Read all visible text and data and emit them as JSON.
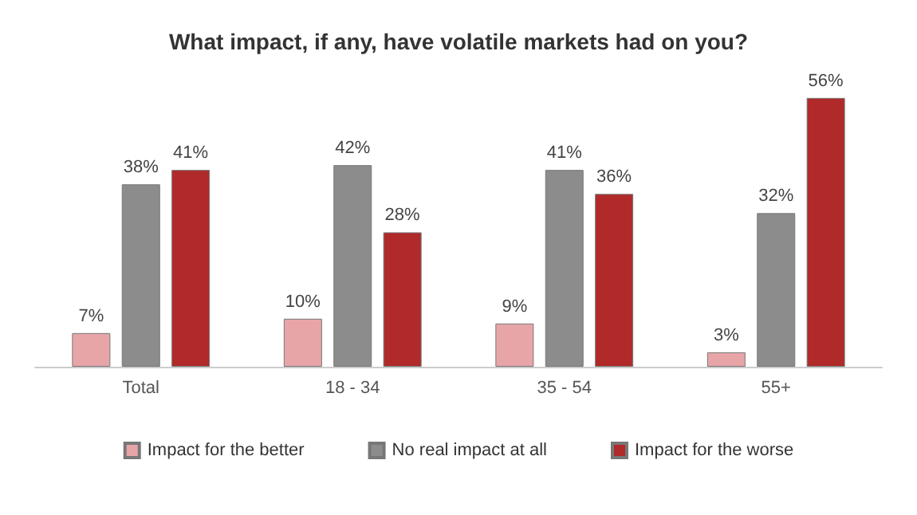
{
  "chart_data": {
    "type": "bar",
    "title": "What impact, if any, have volatile markets had on you?",
    "categories": [
      "Total",
      "18 - 34",
      "35 - 54",
      "55+"
    ],
    "series": [
      {
        "name": "Impact for the better",
        "color": "#e8a5a8",
        "values": [
          7,
          10,
          9,
          3
        ],
        "value_labels": [
          "7%",
          "10%",
          "9%",
          "3%"
        ]
      },
      {
        "name": "No real impact at all",
        "color": "#8c8c8c",
        "values": [
          38,
          42,
          41,
          32
        ],
        "value_labels": [
          "38%",
          "42%",
          "41%",
          "32%"
        ]
      },
      {
        "name": "Impact for the worse",
        "color": "#b02a2a",
        "values": [
          41,
          28,
          36,
          56
        ],
        "value_labels": [
          "41%",
          "28%",
          "36%",
          "56%"
        ]
      }
    ],
    "legend": "bottom"
  }
}
